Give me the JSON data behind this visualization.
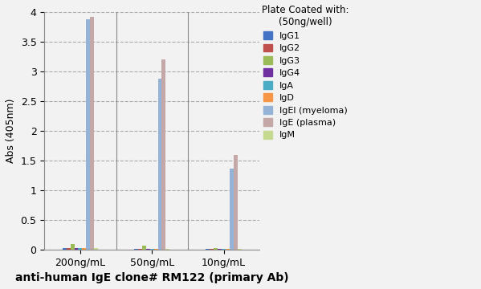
{
  "groups": [
    "200ng/mL",
    "50ng/mL",
    "10ng/mL"
  ],
  "series": [
    {
      "label": "IgG1",
      "color": "#4472C4",
      "values": [
        0.02,
        0.015,
        0.01
      ]
    },
    {
      "label": "IgG2",
      "color": "#C0504D",
      "values": [
        0.02,
        0.015,
        0.01
      ]
    },
    {
      "label": "IgG3",
      "color": "#9BBB59",
      "values": [
        0.09,
        0.07,
        0.03
      ]
    },
    {
      "label": "IgG4",
      "color": "#7030A0",
      "values": [
        0.02,
        0.015,
        0.01
      ]
    },
    {
      "label": "IgA",
      "color": "#4BACC6",
      "values": [
        0.02,
        0.015,
        0.01
      ]
    },
    {
      "label": "IgD",
      "color": "#F79646",
      "values": [
        0.02,
        0.015,
        0.01
      ]
    },
    {
      "label": "IgEl (myeloma)",
      "color": "#95B3D7",
      "values": [
        3.88,
        2.88,
        1.37
      ]
    },
    {
      "label": "IgE (plasma)",
      "color": "#C4A8A8",
      "values": [
        3.92,
        3.2,
        1.6
      ]
    },
    {
      "label": "IgM",
      "color": "#C6D991",
      "values": [
        0.02,
        0.015,
        0.01
      ]
    }
  ],
  "ylabel": "Abs (405nm)",
  "xlabel": "anti-human IgE clone# RM122 (primary Ab)",
  "ylim": [
    0,
    4.0
  ],
  "yticks": [
    0,
    0.5,
    1.0,
    1.5,
    2.0,
    2.5,
    3.0,
    3.5,
    4
  ],
  "ytick_labels": [
    "0",
    "0.5",
    "1",
    "1.5",
    "2",
    "2.5",
    "3",
    "3.5",
    "4"
  ],
  "legend_title": "Plate Coated with:\n(50ng/well)",
  "bg_color": "#F2F2F2",
  "grid_color": "#AAAAAA",
  "separator_color": "#888888"
}
